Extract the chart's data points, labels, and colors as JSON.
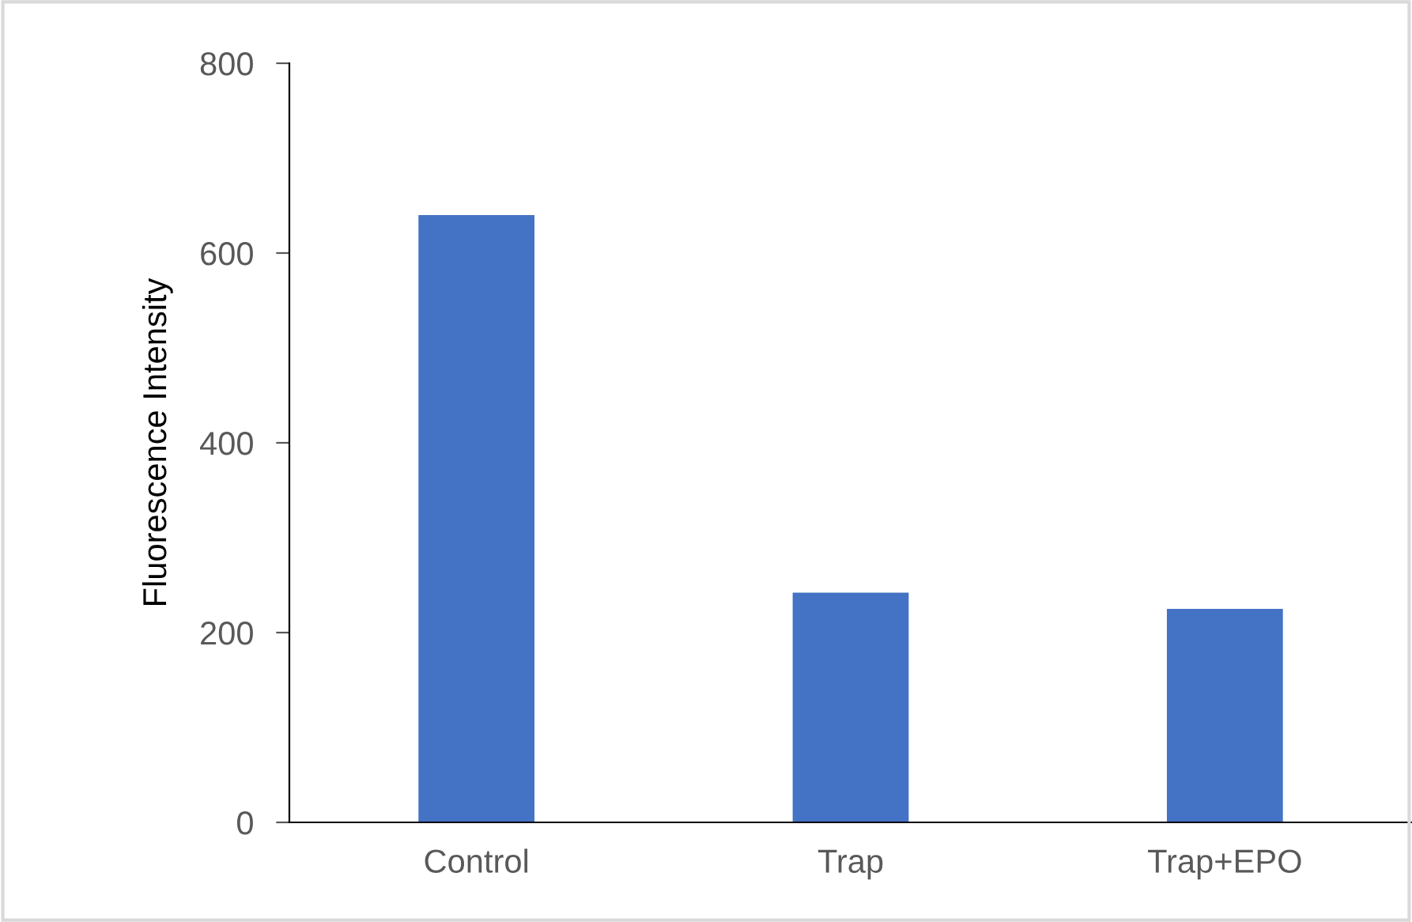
{
  "chart_data": {
    "type": "bar",
    "ylabel": "Fluorescence Intensity",
    "categories": [
      "Control",
      "Trap",
      "Trap+EPO"
    ],
    "values": [
      640,
      242,
      225
    ],
    "color": "#4472c4",
    "ylim": [
      0,
      800
    ],
    "yticks": [
      0,
      200,
      400,
      600,
      800
    ],
    "grid": false,
    "legend": false
  }
}
